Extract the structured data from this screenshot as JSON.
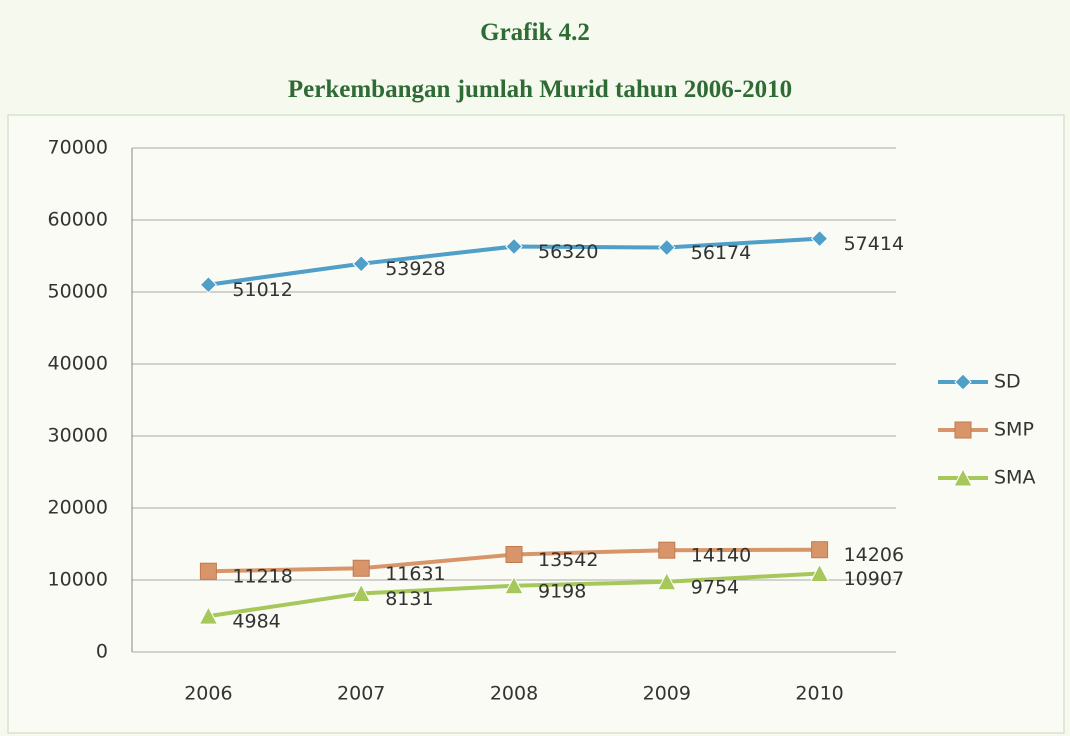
{
  "chart_data": {
    "type": "line",
    "title": "Grafik 4.2",
    "subtitle": "Perkembangan jumlah Murid tahun 2006-2010",
    "categories": [
      "2006",
      "2007",
      "2008",
      "2009",
      "2010"
    ],
    "series": [
      {
        "name": "SD",
        "color": "#4f9fc8",
        "marker": "diamond",
        "values": [
          51012,
          53928,
          56320,
          56174,
          57414
        ]
      },
      {
        "name": "SMP",
        "color": "#d8956a",
        "marker": "square",
        "values": [
          11218,
          11631,
          13542,
          14140,
          14206
        ]
      },
      {
        "name": "SMA",
        "color": "#a6c85a",
        "marker": "triangle",
        "values": [
          4984,
          8131,
          9198,
          9754,
          10907
        ]
      }
    ],
    "ylim": [
      0,
      70000
    ],
    "yticks": [
      0,
      10000,
      20000,
      30000,
      40000,
      50000,
      60000,
      70000
    ],
    "grid": true,
    "legend": "right"
  }
}
